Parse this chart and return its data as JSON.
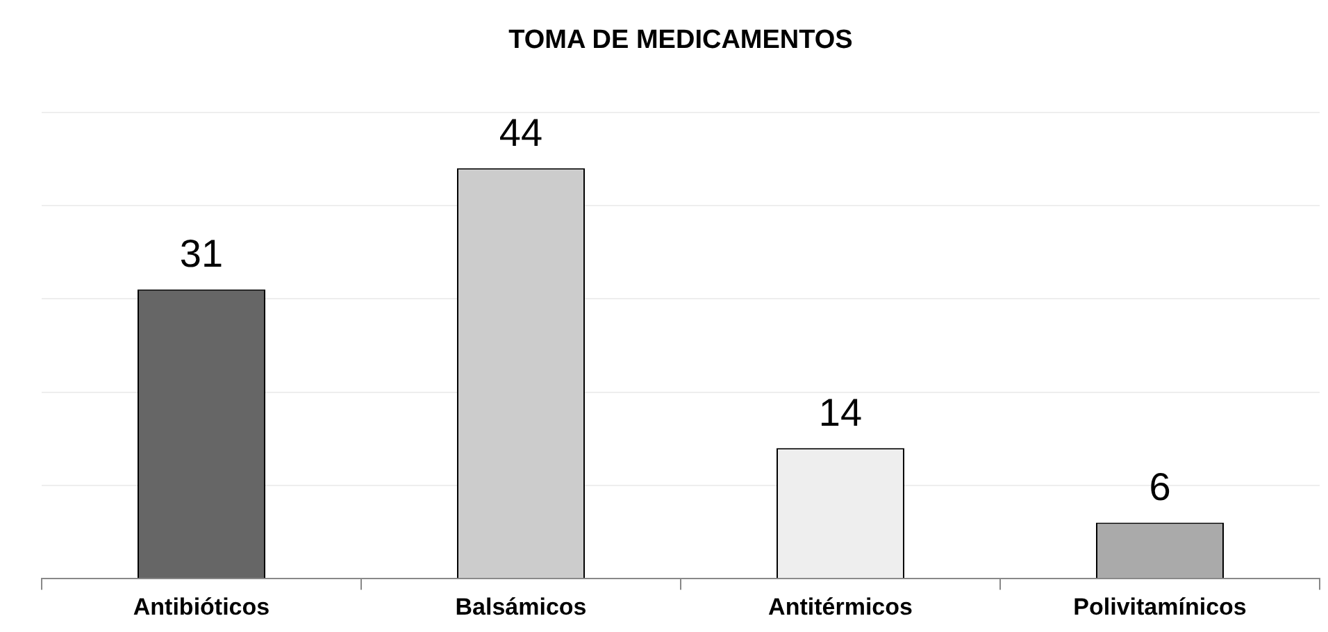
{
  "chart_data": {
    "type": "bar",
    "title": "TOMA DE MEDICAMENTOS",
    "categories": [
      "Antibióticos",
      "Balsámicos",
      "Antitérmicos",
      "Polivitamínicos"
    ],
    "values": [
      31,
      44,
      14,
      6
    ],
    "colors": [
      "#666666",
      "#cccccc",
      "#eeeeee",
      "#aaaaaa"
    ],
    "ylim": [
      0,
      50
    ],
    "grid": "y",
    "tick_labels": "x",
    "data_labels": true,
    "legend": false
  }
}
